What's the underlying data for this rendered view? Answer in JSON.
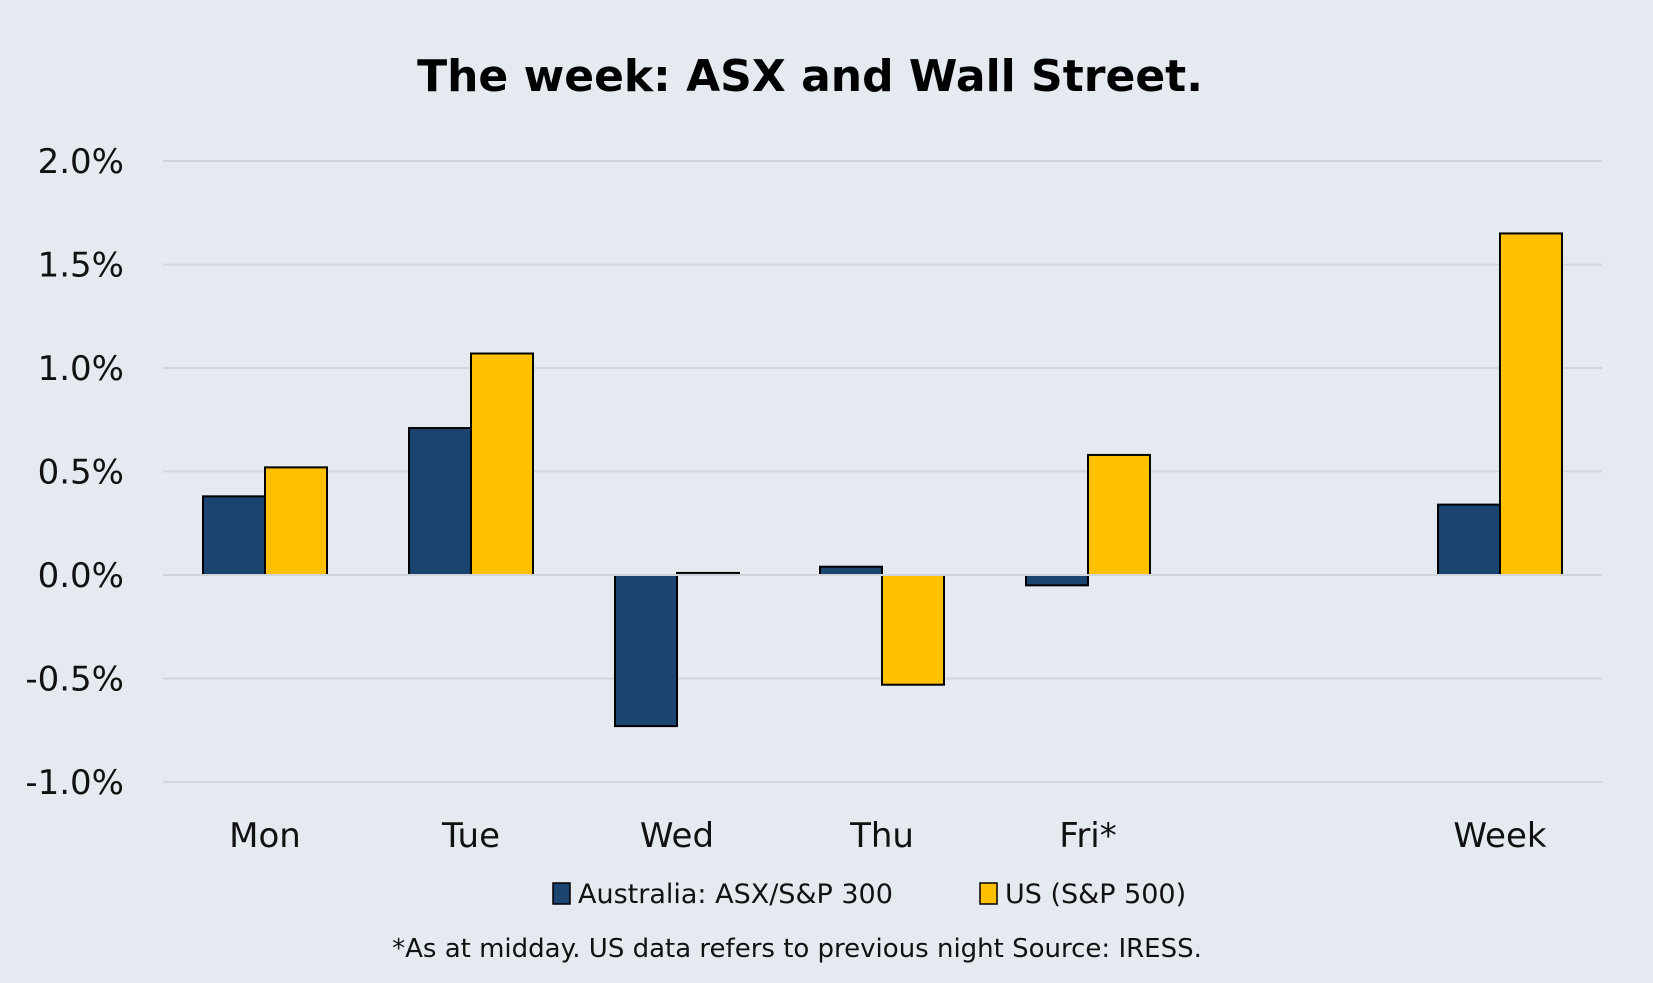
{
  "chart_data": {
    "type": "bar",
    "title": "The week:  ASX and Wall Street.",
    "categories": [
      "Mon",
      "Tue",
      "Wed",
      "Thu",
      "Fri*",
      "Week"
    ],
    "series": [
      {
        "name": "Australia: ASX/S&P 300",
        "color": "#1b4470",
        "values": [
          0.38,
          0.71,
          -0.73,
          0.04,
          -0.05,
          0.34
        ]
      },
      {
        "name": "US (S&P 500)",
        "color": "#ffc000",
        "values": [
          0.52,
          1.07,
          0.01,
          -0.53,
          0.58,
          1.65
        ]
      }
    ],
    "ylim": [
      -1.0,
      2.0
    ],
    "yticks": [
      2.0,
      1.5,
      1.0,
      0.5,
      0.0,
      -0.5,
      -1.0
    ],
    "ytick_labels": [
      "2.0%",
      "1.5%",
      "1.0%",
      "0.5%",
      "0.0%",
      "-0.5%",
      "-1.0%"
    ],
    "xlabel": "",
    "ylabel": "",
    "grid": true,
    "legend_position": "bottom",
    "footnote": "*As at midday. US data refers to previous night  Source:  IRESS."
  }
}
